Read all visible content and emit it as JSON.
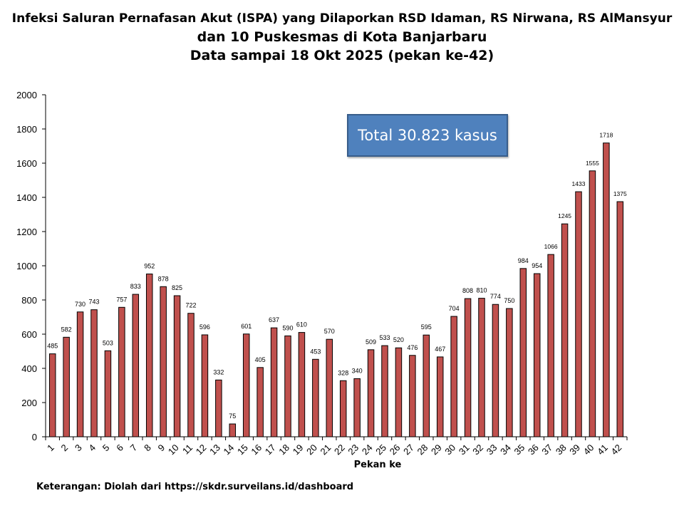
{
  "chart_data": {
    "type": "bar",
    "title": [
      "Infeksi Saluran Pernafasan Akut (ISPA) yang Dilaporkan RSD Idaman, RS Nirwana, RS AlMansyur",
      "dan 10 Puskesmas di Kota Banjarbaru",
      "Data sampai 18 Okt 2025 (pekan ke-42)"
    ],
    "xlabel": "Pekan ke",
    "ylabel": "",
    "ylim": [
      0,
      2000
    ],
    "yticks": [
      0,
      200,
      400,
      600,
      800,
      1000,
      1200,
      1400,
      1600,
      1800,
      2000
    ],
    "categories": [
      "1",
      "2",
      "3",
      "4",
      "5",
      "6",
      "7",
      "8",
      "9",
      "10",
      "11",
      "12",
      "13",
      "14",
      "15",
      "16",
      "17",
      "18",
      "19",
      "20",
      "21",
      "22",
      "23",
      "24",
      "25",
      "26",
      "27",
      "28",
      "29",
      "30",
      "31",
      "32",
      "33",
      "34",
      "35",
      "36",
      "37",
      "38",
      "39",
      "40",
      "41",
      "42"
    ],
    "values": [
      485,
      582,
      730,
      743,
      503,
      757,
      833,
      952,
      878,
      825,
      722,
      596,
      332,
      75,
      601,
      405,
      637,
      590,
      610,
      453,
      570,
      328,
      340,
      509,
      533,
      520,
      476,
      595,
      467,
      704,
      808,
      810,
      774,
      750,
      984,
      954,
      1066,
      1245,
      1433,
      1555,
      1718,
      1375
    ],
    "bar_color": "#c0504d",
    "grid": false,
    "annotation": "Total 30.823  kasus",
    "annotation_color": "#4f81bd"
  },
  "note": "Keterangan: Diolah dari https://skdr.surveilans.id/dashboard"
}
